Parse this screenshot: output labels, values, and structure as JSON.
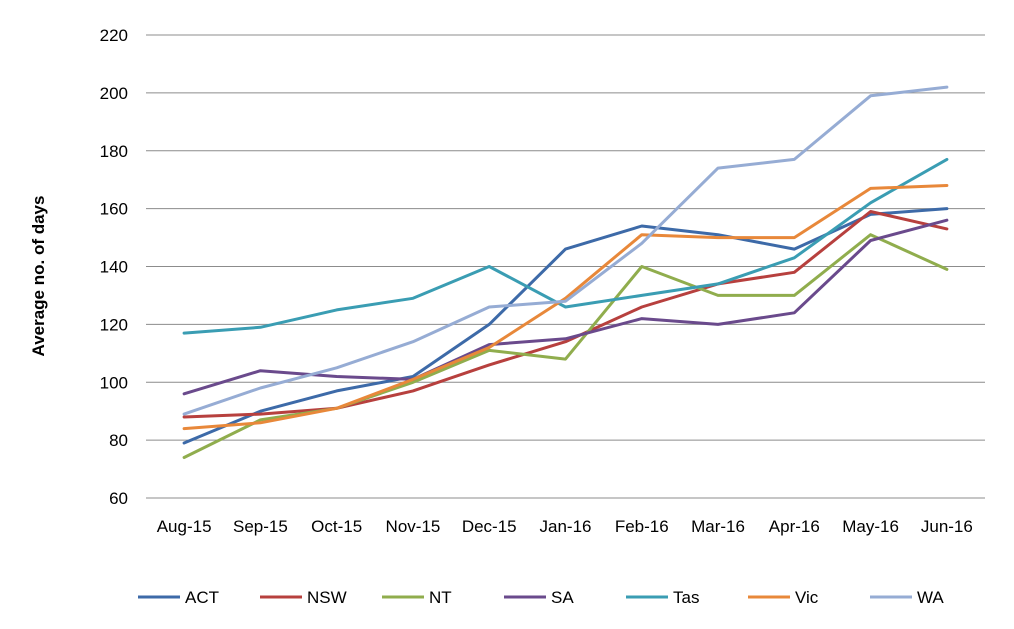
{
  "chart_data": {
    "type": "line",
    "title": "",
    "xlabel": "",
    "ylabel": "Average no. of days",
    "ylim": [
      60,
      220
    ],
    "yticks": [
      60,
      80,
      100,
      120,
      140,
      160,
      180,
      200,
      220
    ],
    "grid": true,
    "legend_position": "bottom",
    "categories": [
      "Aug-15",
      "Sep-15",
      "Oct-15",
      "Nov-15",
      "Dec-15",
      "Jan-16",
      "Feb-16",
      "Mar-16",
      "Apr-16",
      "May-16",
      "Jun-16"
    ],
    "series": [
      {
        "name": "ACT",
        "color": "#3d6aa8",
        "values": [
          79,
          90,
          97,
          102,
          120,
          146,
          154,
          151,
          146,
          158,
          160
        ]
      },
      {
        "name": "NSW",
        "color": "#b7403e",
        "values": [
          88,
          89,
          91,
          97,
          106,
          114,
          126,
          134,
          138,
          159,
          153
        ]
      },
      {
        "name": "NT",
        "color": "#90ad4d",
        "values": [
          74,
          87,
          91,
          100,
          111,
          108,
          140,
          130,
          130,
          151,
          139
        ]
      },
      {
        "name": "SA",
        "color": "#6a4a8c",
        "values": [
          96,
          104,
          102,
          101,
          113,
          115,
          122,
          120,
          124,
          149,
          156
        ]
      },
      {
        "name": "Tas",
        "color": "#3a9db3",
        "values": [
          117,
          119,
          125,
          129,
          140,
          126,
          130,
          134,
          143,
          162,
          177
        ]
      },
      {
        "name": "Vic",
        "color": "#e8883a",
        "values": [
          84,
          86,
          91,
          101,
          112,
          129,
          151,
          150,
          150,
          167,
          168
        ]
      },
      {
        "name": "WA",
        "color": "#96acd4",
        "values": [
          89,
          98,
          105,
          114,
          126,
          128,
          148,
          174,
          177,
          199,
          202
        ]
      }
    ]
  }
}
